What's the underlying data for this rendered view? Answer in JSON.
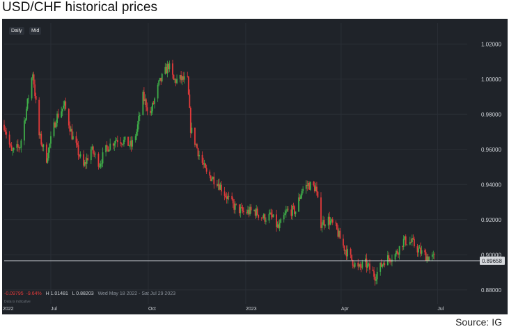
{
  "title": "USD/CHF historical prices",
  "source": "Source: IG",
  "toolbar": {
    "daily": "Daily",
    "mid": "Mid"
  },
  "stats": {
    "change": "-0.09795",
    "change_pct": "-9.64%",
    "high": "H 1.01481",
    "low": "L 0.88203",
    "range": "Wed May 18 2022 - Sat Jul 29 2023",
    "sub": "Data is indicative"
  },
  "last_price": "0.89658",
  "colors": {
    "up": "#3fae49",
    "down": "#e23a3a",
    "bg": "#1f2329",
    "grid": "#2a2f36",
    "text": "#cfd3d8"
  },
  "chart_data": {
    "type": "candlestick",
    "title": "USD/CHF historical prices",
    "ylim": [
      0.872,
      1.032
    ],
    "y_ticks": [
      "1.02000",
      "1.00000",
      "0.98000",
      "0.96000",
      "0.94000",
      "0.92000",
      "0.90000",
      "0.88000"
    ],
    "x_ticks": [
      "2022",
      "Jul",
      "Oct",
      "2023",
      "Apr",
      "Jul"
    ],
    "x_tick_dates": [
      "2022-05-01",
      "2022-07-01",
      "2022-10-01",
      "2023-01-01",
      "2023-04-01",
      "2023-07-01"
    ],
    "x_range": [
      "2022-05-18",
      "2023-07-29"
    ],
    "close_path": [
      [
        "2022-05-18",
        0.974
      ],
      [
        "2022-05-25",
        0.958
      ],
      [
        "2022-06-02",
        0.962
      ],
      [
        "2022-06-10",
        0.99
      ],
      [
        "2022-06-14",
        1.004
      ],
      [
        "2022-06-20",
        0.968
      ],
      [
        "2022-06-27",
        0.955
      ],
      [
        "2022-07-06",
        0.978
      ],
      [
        "2022-07-14",
        0.985
      ],
      [
        "2022-07-21",
        0.968
      ],
      [
        "2022-08-01",
        0.95
      ],
      [
        "2022-08-08",
        0.96
      ],
      [
        "2022-08-16",
        0.952
      ],
      [
        "2022-08-23",
        0.961
      ],
      [
        "2022-09-01",
        0.966
      ],
      [
        "2022-09-07",
        0.965
      ],
      [
        "2022-09-15",
        0.962
      ],
      [
        "2022-09-20",
        0.97
      ],
      [
        "2022-09-26",
        0.99
      ],
      [
        "2022-10-03",
        0.98
      ],
      [
        "2022-10-11",
        0.997
      ],
      [
        "2022-10-20",
        1.008
      ],
      [
        "2022-10-25",
        0.999
      ],
      [
        "2022-11-01",
        1.0
      ],
      [
        "2022-11-07",
        0.999
      ],
      [
        "2022-11-10",
        0.972
      ],
      [
        "2022-11-18",
        0.957
      ],
      [
        "2022-11-25",
        0.946
      ],
      [
        "2022-12-05",
        0.942
      ],
      [
        "2022-12-12",
        0.935
      ],
      [
        "2022-12-20",
        0.928
      ],
      [
        "2022-12-30",
        0.924
      ],
      [
        "2023-01-09",
        0.925
      ],
      [
        "2023-01-18",
        0.921
      ],
      [
        "2023-01-25",
        0.922
      ],
      [
        "2023-02-01",
        0.915
      ],
      [
        "2023-02-09",
        0.925
      ],
      [
        "2023-02-17",
        0.925
      ],
      [
        "2023-02-23",
        0.937
      ],
      [
        "2023-03-01",
        0.94
      ],
      [
        "2023-03-08",
        0.938
      ],
      [
        "2023-03-13",
        0.918
      ],
      [
        "2023-03-20",
        0.92
      ],
      [
        "2023-03-27",
        0.915
      ],
      [
        "2023-04-03",
        0.905
      ],
      [
        "2023-04-10",
        0.898
      ],
      [
        "2023-04-17",
        0.892
      ],
      [
        "2023-04-24",
        0.895
      ],
      [
        "2023-05-03",
        0.888
      ],
      [
        "2023-05-12",
        0.897
      ],
      [
        "2023-05-22",
        0.9
      ],
      [
        "2023-05-30",
        0.908
      ],
      [
        "2023-06-07",
        0.907
      ],
      [
        "2023-06-14",
        0.902
      ],
      [
        "2023-06-21",
        0.899
      ],
      [
        "2023-06-28",
        0.898
      ]
    ],
    "last_close": 0.89658
  }
}
